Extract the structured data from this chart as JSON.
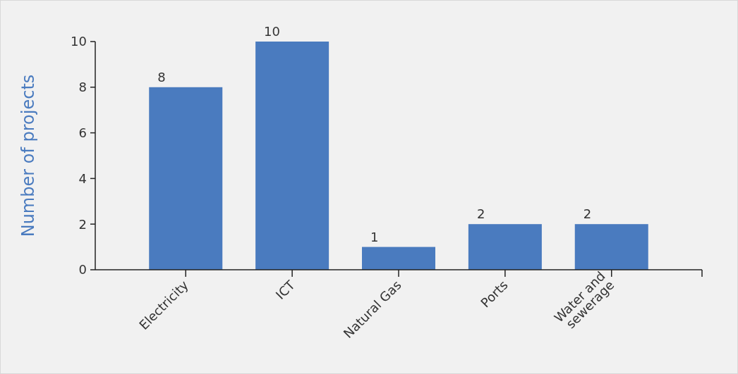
{
  "chart_data": {
    "type": "bar",
    "ylabel": "Number of projects",
    "categories": [
      "Electricity",
      "ICT",
      "Natural Gas",
      "Ports",
      "Water and sewerage"
    ],
    "values": [
      8,
      10,
      1,
      2,
      2
    ],
    "color": "#4a7bbf",
    "ylim": [
      0,
      10
    ],
    "yticks": [
      0,
      2,
      4,
      6,
      8,
      10
    ],
    "data_labels": true,
    "grid": false
  }
}
